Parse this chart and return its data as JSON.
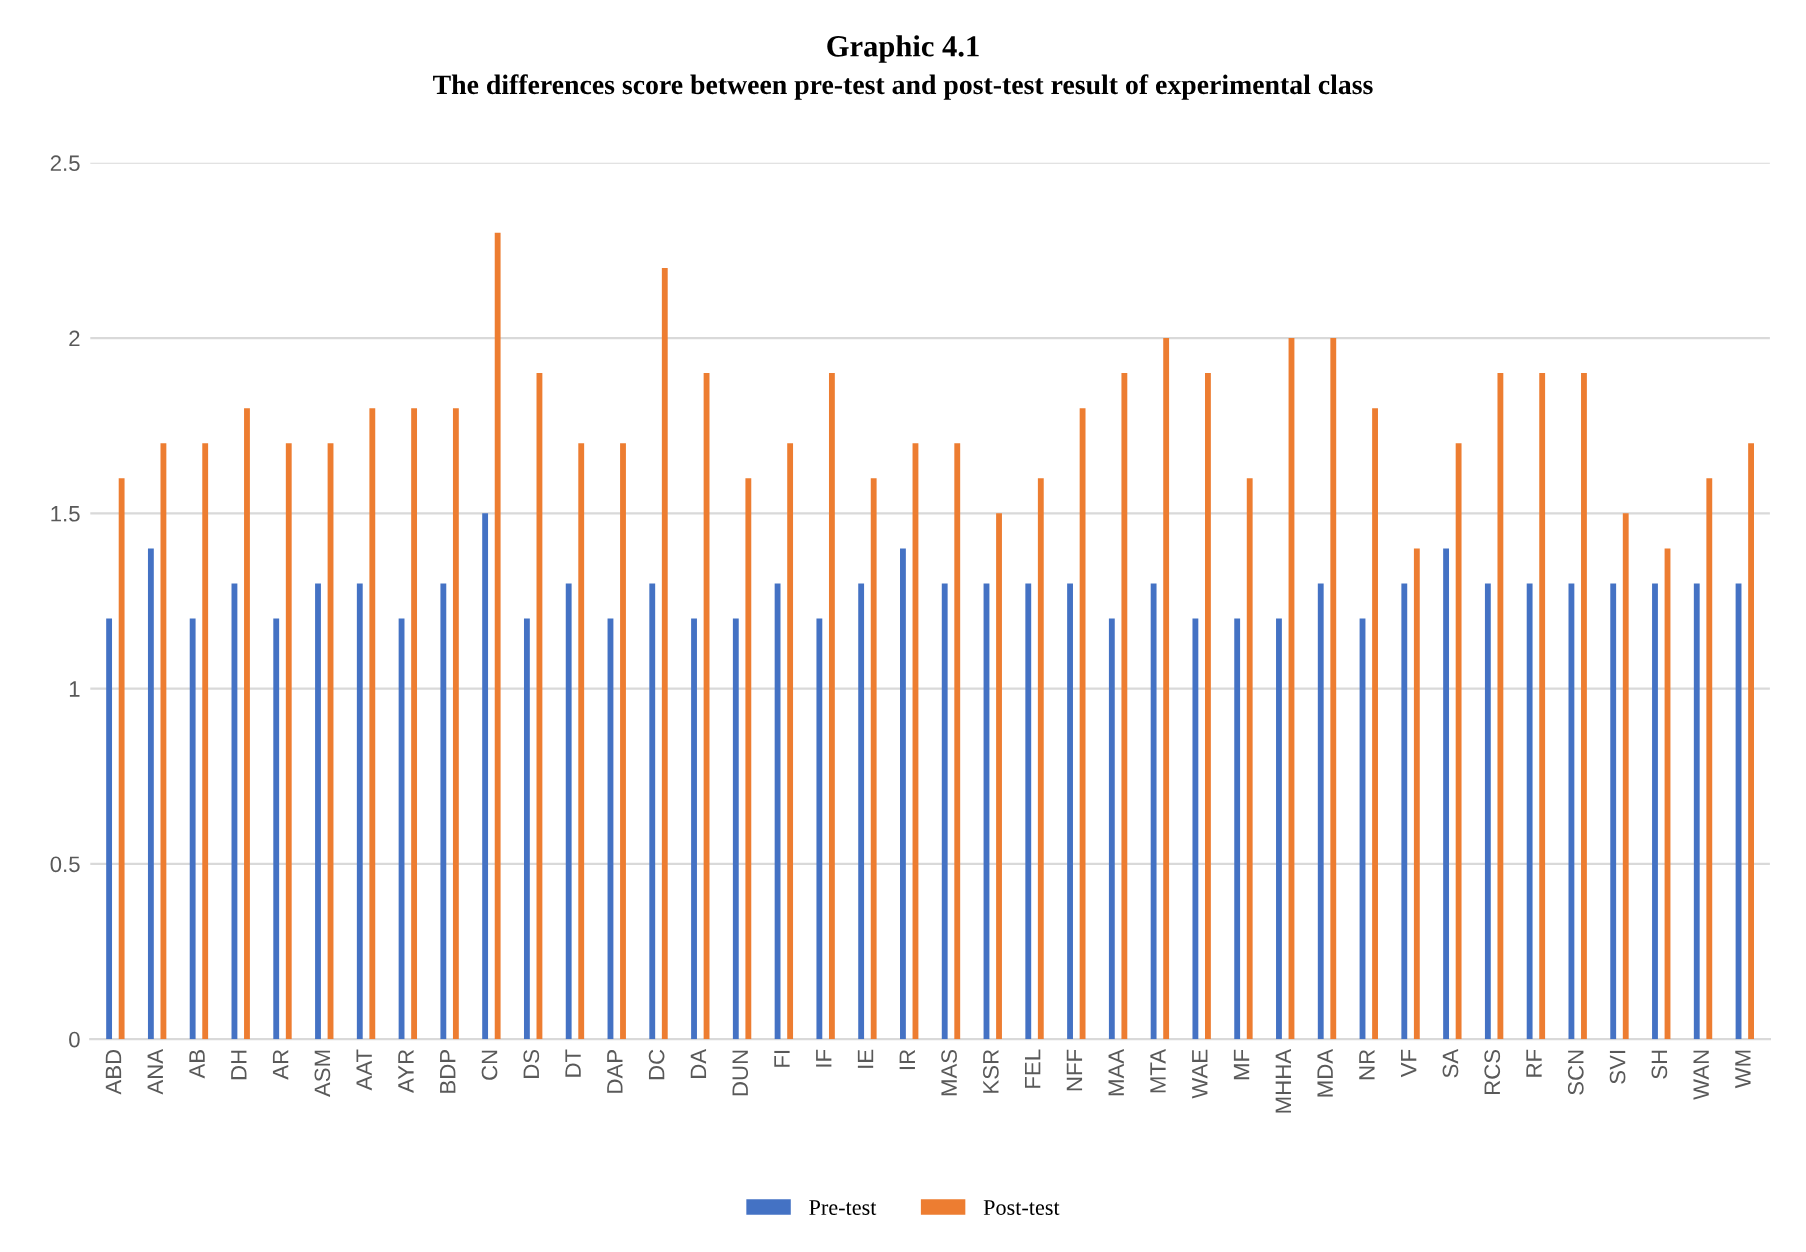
{
  "chart_data": {
    "type": "bar",
    "title": "Graphic 4.1",
    "subtitle": "The differences score between pre-test and post-test result of experimental class",
    "categories": [
      "ABD",
      "ANA",
      "AB",
      "DH",
      "AR",
      "ASM",
      "AAT",
      "AYR",
      "BDP",
      "CN",
      "DS",
      "DT",
      "DAP",
      "DC",
      "DA",
      "DUN",
      "FI",
      "IF",
      "IE",
      "IR",
      "MAS",
      "KSR",
      "FEL",
      "NFF",
      "MAA",
      "MTA",
      "WAE",
      "MF",
      "MHHA",
      "MDA",
      "NR",
      "VF",
      "SA",
      "RCS",
      "RF",
      "SCN",
      "SVI",
      "SH",
      "WAN",
      "WM"
    ],
    "series": [
      {
        "name": "Pre-test",
        "color": "#4472c4",
        "values": [
          1.2,
          1.4,
          1.2,
          1.3,
          1.2,
          1.3,
          1.3,
          1.2,
          1.3,
          1.5,
          1.2,
          1.3,
          1.2,
          1.3,
          1.2,
          1.2,
          1.3,
          1.2,
          1.3,
          1.4,
          1.3,
          1.3,
          1.3,
          1.3,
          1.2,
          1.3,
          1.2,
          1.2,
          1.2,
          1.3,
          1.2,
          1.3,
          1.4,
          1.3,
          1.3,
          1.3,
          1.3,
          1.3,
          1.3,
          1.3
        ]
      },
      {
        "name": "Post-test",
        "color": "#ed7d31",
        "values": [
          1.6,
          1.7,
          1.7,
          1.8,
          1.7,
          1.7,
          1.8,
          1.8,
          1.8,
          2.3,
          1.9,
          1.7,
          1.7,
          2.2,
          1.9,
          1.6,
          1.7,
          1.9,
          1.6,
          1.7,
          1.7,
          1.5,
          1.6,
          1.8,
          1.9,
          2.0,
          1.9,
          1.6,
          2.0,
          2.0,
          1.8,
          1.4,
          1.7,
          1.9,
          1.9,
          1.9,
          1.5,
          1.4,
          1.6,
          1.7
        ]
      }
    ],
    "ylim": [
      0,
      2.5
    ],
    "yticks": [
      0,
      0.5,
      1,
      1.5,
      2,
      2.5
    ],
    "grid": "y",
    "legend": "bottom"
  }
}
